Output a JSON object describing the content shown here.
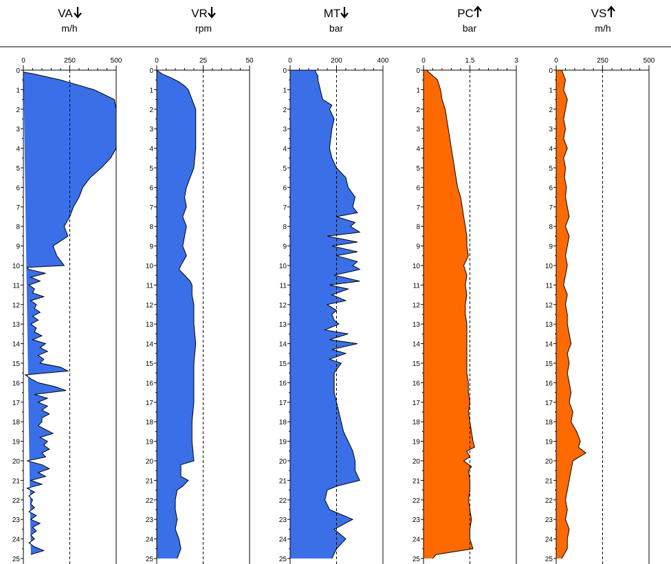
{
  "chart_data": [
    {
      "type": "area",
      "title": "VA",
      "arrow": "down",
      "unit": "m/h",
      "xlim": [
        0,
        500
      ],
      "x_ticks": [
        "0",
        "250",
        "500"
      ],
      "reference_line": 250,
      "color": "#3a6fe8",
      "depth_ticks": [
        "0",
        "1",
        "2",
        "3",
        "4",
        "5",
        "6",
        "7",
        "8",
        "9",
        "10",
        "11",
        "12",
        "13",
        "14",
        "15",
        "16",
        "17",
        "18",
        "19",
        "20",
        "21",
        "22",
        "23",
        "24",
        "25"
      ],
      "depth": [
        0,
        0.1,
        0.2,
        0.5,
        1,
        1.5,
        2,
        3,
        4,
        4.5,
        5,
        5.5,
        6,
        6.5,
        7,
        7.5,
        8,
        8.5,
        9,
        9.5,
        10,
        10.1,
        10.2,
        10.4,
        10.6,
        10.8,
        11,
        11.2,
        11.4,
        11.6,
        11.8,
        12,
        12.2,
        12.4,
        12.6,
        12.8,
        13,
        13.2,
        13.4,
        13.6,
        13.8,
        14,
        14.2,
        14.4,
        14.6,
        14.8,
        15,
        15.2,
        15.4,
        15.6,
        15.8,
        16,
        16.2,
        16.4,
        16.6,
        16.8,
        17,
        17.2,
        17.4,
        17.6,
        17.8,
        18,
        18.2,
        18.4,
        18.6,
        18.8,
        19,
        19.2,
        19.4,
        19.6,
        19.8,
        20,
        20.2,
        20.4,
        20.6,
        20.8,
        21,
        21.2,
        21.4,
        21.6,
        21.8,
        22,
        22.2,
        22.4,
        22.6,
        22.8,
        23,
        23.2,
        23.4,
        23.6,
        23.8,
        24,
        24.2,
        24.4,
        24.6,
        24.8,
        25
      ],
      "values": [
        0,
        0,
        60,
        200,
        380,
        490,
        500,
        500,
        500,
        470,
        420,
        360,
        320,
        300,
        270,
        250,
        220,
        240,
        160,
        180,
        220,
        20,
        30,
        120,
        40,
        90,
        30,
        60,
        50,
        110,
        40,
        70,
        60,
        90,
        50,
        80,
        40,
        70,
        60,
        100,
        50,
        120,
        90,
        130,
        80,
        110,
        90,
        200,
        240,
        10,
        40,
        80,
        170,
        230,
        60,
        130,
        80,
        130,
        100,
        140,
        100,
        100,
        80,
        120,
        160,
        90,
        130,
        110,
        140,
        100,
        120,
        20,
        100,
        140,
        80,
        120,
        40,
        100,
        20,
        60,
        30,
        50,
        40,
        60,
        30,
        70,
        40,
        90,
        50,
        70,
        40,
        60,
        30,
        60,
        110,
        40
      ]
    },
    {
      "type": "area",
      "title": "VR",
      "arrow": "down",
      "unit": "rpm",
      "xlim": [
        0,
        50
      ],
      "x_ticks": [
        "0",
        "25",
        "50"
      ],
      "reference_line": 25,
      "color": "#3a6fe8",
      "depth_ticks": [
        "0",
        "1",
        "2",
        "3",
        "4",
        "5",
        "6",
        "7",
        "8",
        "9",
        "10",
        "11",
        "12",
        "13",
        "14",
        "15",
        "16",
        "17",
        "18",
        "19",
        "20",
        "21",
        "22",
        "23",
        "24",
        "25"
      ],
      "depth": [
        0,
        0.2,
        0.4,
        0.6,
        0.8,
        1,
        1.5,
        2,
        3,
        4,
        5,
        5.5,
        6,
        6.5,
        7,
        7.5,
        8,
        8.5,
        9,
        9.5,
        10,
        10.2,
        10.4,
        10.6,
        10.8,
        11,
        11.5,
        12,
        13,
        14,
        15,
        16,
        17,
        18,
        19,
        20,
        20.2,
        20.8,
        21,
        21.3,
        21.5,
        22,
        22.5,
        23,
        23.5,
        24,
        24.5,
        25
      ],
      "values": [
        0,
        3,
        8,
        12,
        15,
        17,
        19,
        21,
        21,
        21,
        20,
        18,
        16,
        15,
        16,
        14,
        16,
        15,
        14,
        16,
        13,
        12,
        14,
        16,
        18,
        19,
        19,
        20,
        20,
        21,
        20,
        20,
        20,
        19,
        19,
        20,
        13,
        13,
        17,
        14,
        11,
        10,
        10,
        11,
        10,
        12,
        13,
        11
      ]
    },
    {
      "type": "area",
      "title": "MT",
      "arrow": "down",
      "unit": "bar",
      "xlim": [
        0,
        400
      ],
      "x_ticks": [
        "0",
        "200",
        "400"
      ],
      "reference_line": 200,
      "color": "#3a6fe8",
      "depth_ticks": [
        "0",
        "1",
        "2",
        "3",
        "4",
        "5",
        "6",
        "7",
        "8",
        "9",
        "10",
        "11",
        "12",
        "13",
        "14",
        "15",
        "16",
        "17",
        "18",
        "19",
        "20",
        "21",
        "22",
        "23",
        "24",
        "25"
      ],
      "depth": [
        0,
        0.1,
        0.3,
        0.5,
        1,
        1.5,
        1.8,
        2,
        2.5,
        3,
        3.5,
        4,
        4.5,
        5,
        5.5,
        6,
        6.5,
        7,
        7.3,
        7.5,
        7.8,
        8,
        8.3,
        8.5,
        8.8,
        9,
        9.3,
        9.5,
        9.8,
        10,
        10.2,
        10.5,
        10.8,
        11,
        11.2,
        11.5,
        11.8,
        12,
        12.3,
        12.5,
        12.8,
        13,
        13.3,
        13.5,
        13.8,
        14,
        14.3,
        14.5,
        14.8,
        15,
        15.5,
        16,
        16.5,
        17,
        17.5,
        18,
        18.5,
        19,
        19.5,
        20,
        20.5,
        21,
        21.3,
        21.5,
        22,
        22.5,
        23,
        23.5,
        24,
        24.5,
        25
      ],
      "values": [
        110,
        110,
        120,
        120,
        130,
        140,
        180,
        170,
        190,
        180,
        175,
        170,
        180,
        200,
        240,
        250,
        280,
        270,
        290,
        200,
        280,
        260,
        300,
        160,
        290,
        180,
        290,
        200,
        290,
        270,
        300,
        190,
        300,
        170,
        250,
        180,
        240,
        160,
        200,
        180,
        190,
        210,
        150,
        250,
        170,
        290,
        180,
        240,
        170,
        220,
        190,
        190,
        190,
        200,
        210,
        220,
        230,
        250,
        270,
        280,
        280,
        300,
        200,
        160,
        150,
        170,
        270,
        190,
        240,
        200,
        180
      ]
    },
    {
      "type": "area",
      "title": "PC",
      "arrow": "up",
      "unit": "bar",
      "xlim": [
        0,
        3
      ],
      "x_ticks": [
        "0",
        "1.5",
        "3"
      ],
      "reference_line": 1.5,
      "color": "#ff6a00",
      "depth_ticks": [
        "0",
        "1",
        "2",
        "3",
        "4",
        "5",
        "6",
        "7",
        "8",
        "9",
        "10",
        "11",
        "12",
        "13",
        "14",
        "15",
        "16",
        "17",
        "18",
        "19",
        "20",
        "21",
        "22",
        "23",
        "24",
        "25"
      ],
      "depth": [
        0,
        0.5,
        1,
        1.5,
        2,
        2.5,
        3,
        3.5,
        4,
        4.5,
        5,
        5.5,
        6,
        6.5,
        7,
        7.5,
        8,
        8.5,
        9,
        9.5,
        10,
        10.5,
        11,
        11.5,
        12,
        12.5,
        13,
        13.5,
        14,
        14.5,
        15,
        15.5,
        16,
        16.5,
        17,
        17.5,
        18,
        18.5,
        19,
        19.3,
        19.5,
        19.8,
        20,
        20.3,
        20.5,
        21,
        21.5,
        22,
        22.5,
        23,
        23.5,
        24,
        24.5,
        24.8,
        25
      ],
      "values": [
        0.1,
        0.45,
        0.55,
        0.6,
        0.7,
        0.75,
        0.8,
        0.85,
        0.9,
        0.95,
        1.0,
        1.05,
        1.1,
        1.2,
        1.25,
        1.3,
        1.35,
        1.4,
        1.4,
        1.45,
        1.3,
        1.4,
        1.35,
        1.4,
        1.35,
        1.35,
        1.4,
        1.4,
        1.4,
        1.4,
        1.4,
        1.4,
        1.45,
        1.45,
        1.5,
        1.45,
        1.5,
        1.55,
        1.6,
        1.65,
        1.4,
        1.5,
        1.3,
        1.55,
        1.45,
        1.5,
        1.5,
        1.45,
        1.5,
        1.55,
        1.5,
        1.5,
        1.6,
        0.4,
        0.3
      ]
    },
    {
      "type": "area",
      "title": "VS",
      "arrow": "up",
      "unit": "m/h",
      "xlim": [
        0,
        500
      ],
      "x_ticks": [
        "0",
        "250",
        "500"
      ],
      "reference_line": 250,
      "color": "#ff6a00",
      "depth_ticks": [
        "0",
        "1",
        "2",
        "3",
        "4",
        "5",
        "6",
        "7",
        "8",
        "9",
        "10",
        "11",
        "12",
        "13",
        "14",
        "15",
        "16",
        "17",
        "18",
        "19",
        "20",
        "21",
        "22",
        "23",
        "24",
        "25"
      ],
      "depth": [
        0,
        0.5,
        1,
        1.5,
        2,
        2.5,
        3,
        3.5,
        4,
        4.5,
        5,
        5.5,
        6,
        6.5,
        7,
        7.5,
        8,
        8.5,
        9,
        9.5,
        10,
        10.5,
        11,
        11.5,
        12,
        12.5,
        13,
        13.5,
        14,
        14.5,
        15,
        15.5,
        16,
        16.5,
        17,
        17.5,
        18,
        18.5,
        19,
        19.3,
        19.6,
        20,
        20.5,
        21,
        21.5,
        22,
        22.5,
        23,
        23.5,
        24,
        24.5,
        25
      ],
      "values": [
        30,
        50,
        40,
        60,
        50,
        40,
        50,
        40,
        60,
        40,
        50,
        45,
        55,
        50,
        60,
        70,
        50,
        70,
        60,
        50,
        60,
        50,
        40,
        60,
        50,
        60,
        60,
        70,
        80,
        60,
        70,
        60,
        70,
        80,
        70,
        90,
        80,
        110,
        130,
        120,
        160,
        90,
        80,
        70,
        60,
        50,
        60,
        50,
        70,
        60,
        60,
        30
      ]
    }
  ]
}
